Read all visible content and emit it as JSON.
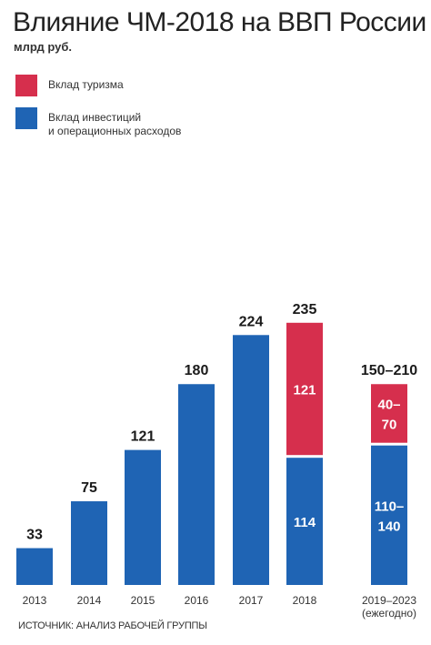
{
  "title": "Влияние ЧМ-2018 на ВВП России",
  "subtitle": "млрд руб.",
  "source": "ИСТОЧНИК: АНАЛИЗ РАБОЧЕЙ ГРУППЫ",
  "colors": {
    "tourism": "#d62f4d",
    "investment": "#1f64b4"
  },
  "legend": [
    {
      "label": "Вклад туризма",
      "color": "#d62f4d"
    },
    {
      "label": "Вклад инвестиций\nи операционных расходов",
      "color": "#1f64b4"
    }
  ],
  "chart_data": {
    "type": "bar",
    "stacked": true,
    "title": "Влияние ЧМ-2018 на ВВП России",
    "ylabel": "млрд руб.",
    "ylim": [
      0,
      235
    ],
    "categories": [
      "2013",
      "2014",
      "2015",
      "2016",
      "2017",
      "2018",
      "2019–2023\n(ежегодно)"
    ],
    "series": [
      {
        "name": "Вклад инвестиций и операционных расходов",
        "color": "#1f64b4",
        "values": [
          33,
          75,
          121,
          180,
          224,
          114,
          125
        ],
        "labels": [
          "",
          "",
          "",
          "",
          "",
          "114",
          "110–\n140"
        ]
      },
      {
        "name": "Вклад туризма",
        "color": "#d62f4d",
        "values": [
          0,
          0,
          0,
          0,
          0,
          121,
          55
        ],
        "labels": [
          "",
          "",
          "",
          "",
          "",
          "121",
          "40–\n70"
        ]
      }
    ],
    "totals": [
      "33",
      "75",
      "121",
      "180",
      "224",
      "235",
      "150–210"
    ],
    "legend_position": "top-left",
    "grid": false
  }
}
